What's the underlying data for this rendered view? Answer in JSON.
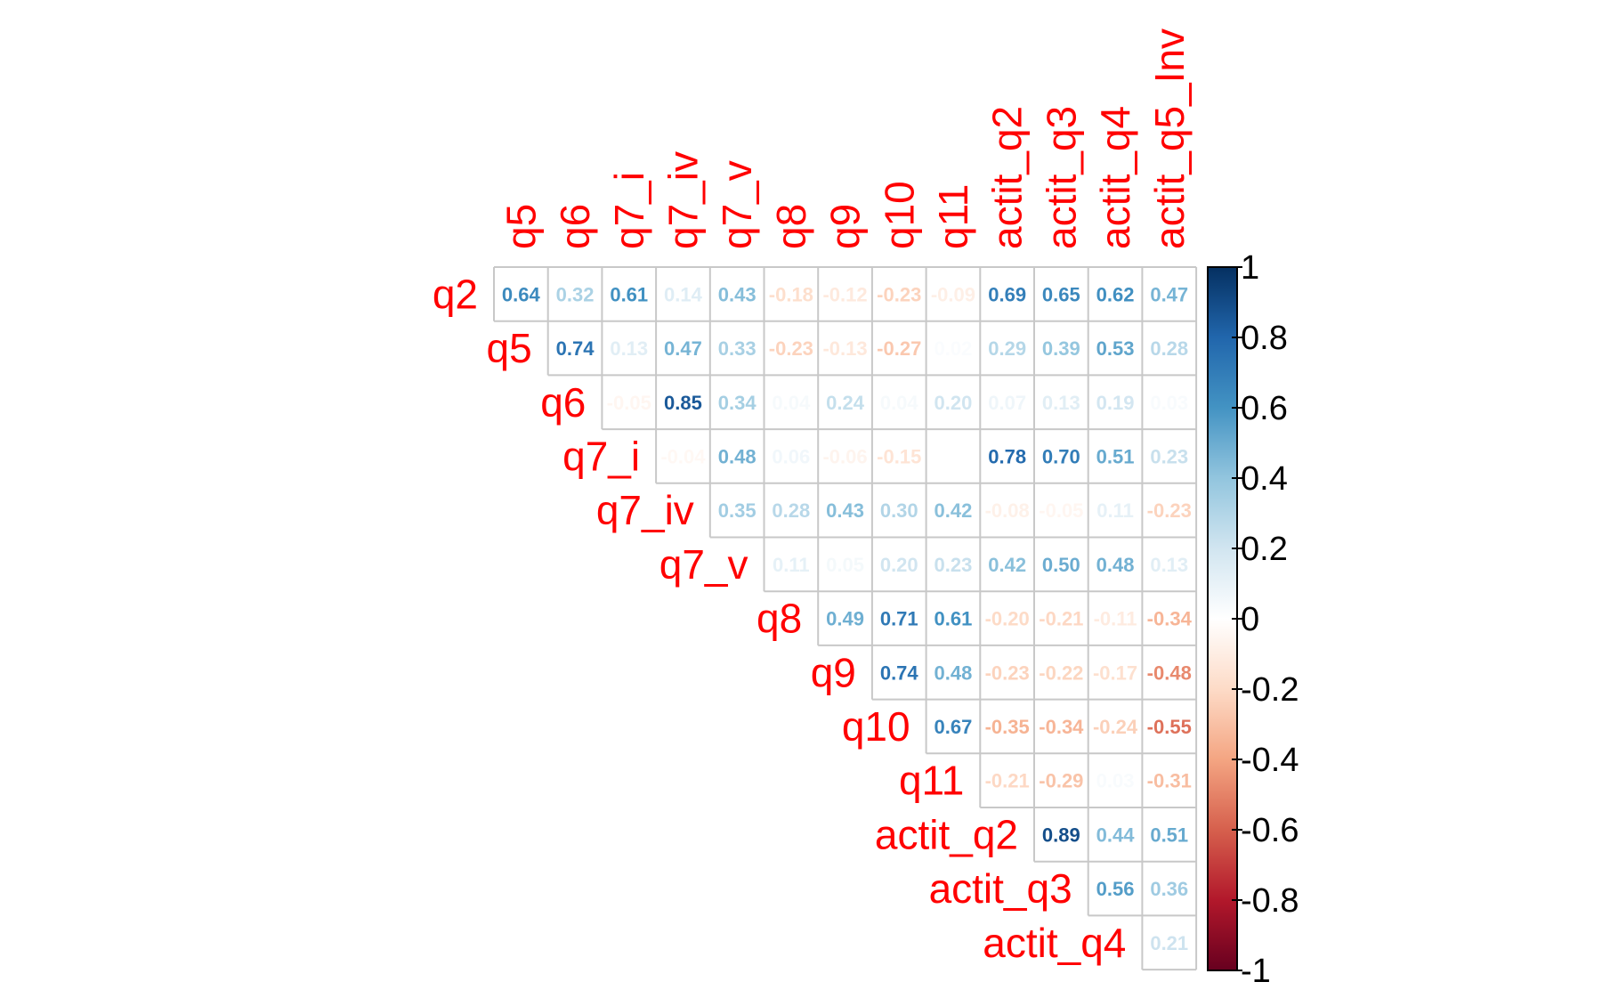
{
  "chart_data": {
    "type": "heatmap",
    "variables": [
      "q2",
      "q5",
      "q6",
      "q7_i",
      "q7_iv",
      "q7_v",
      "q8",
      "q9",
      "q10",
      "q11",
      "actit_q2",
      "actit_q3",
      "actit_q4",
      "actit_q5_Inv"
    ],
    "row_labels": [
      "q2",
      "q5",
      "q6",
      "q7_i",
      "q7_iv",
      "q7_v",
      "q8",
      "q9",
      "q10",
      "q11",
      "actit_q2",
      "actit_q3",
      "actit_q4"
    ],
    "col_labels": [
      "q5",
      "q6",
      "q7_i",
      "q7_iv",
      "q7_v",
      "q8",
      "q9",
      "q10",
      "q11",
      "actit_q2",
      "actit_q3",
      "actit_q4",
      "actit_q5_Inv"
    ],
    "matrix_layout": "upper-triangle",
    "values": [
      [
        0.64,
        0.32,
        0.61,
        0.14,
        0.43,
        -0.18,
        -0.12,
        -0.23,
        -0.09,
        0.69,
        0.65,
        0.62,
        0.47
      ],
      [
        0.74,
        0.13,
        0.47,
        0.33,
        -0.23,
        -0.13,
        -0.27,
        0.02,
        0.29,
        0.39,
        0.53,
        0.28
      ],
      [
        -0.05,
        0.85,
        0.34,
        0.04,
        0.24,
        0.04,
        0.2,
        0.07,
        0.13,
        0.19,
        0.03
      ],
      [
        -0.04,
        0.48,
        0.06,
        -0.06,
        -0.15,
        0.0,
        0.78,
        0.7,
        0.51,
        0.23
      ],
      [
        0.35,
        0.28,
        0.43,
        0.3,
        0.42,
        -0.08,
        -0.05,
        0.11,
        -0.23
      ],
      [
        0.11,
        0.05,
        0.2,
        0.23,
        0.42,
        0.5,
        0.48,
        0.13
      ],
      [
        0.49,
        0.71,
        0.61,
        -0.2,
        -0.21,
        -0.11,
        -0.34
      ],
      [
        0.74,
        0.48,
        -0.23,
        -0.22,
        -0.17,
        -0.48
      ],
      [
        0.67,
        -0.35,
        -0.34,
        -0.24,
        -0.55
      ],
      [
        -0.21,
        -0.29,
        0.03,
        -0.31
      ],
      [
        0.89,
        0.44,
        0.51
      ],
      [
        0.56,
        0.36
      ],
      [
        0.21
      ]
    ],
    "colorbar": {
      "range": [
        -1,
        1
      ],
      "ticks": [
        "1",
        "0.8",
        "0.6",
        "0.4",
        "0.2",
        "0",
        "-0.2",
        "-0.4",
        "-0.6",
        "-0.8",
        "-1"
      ],
      "low_color": "#67001f",
      "mid_color": "#ffffff",
      "high_color": "#053061"
    },
    "label_color": "#ff0000",
    "grid_color": "#c8c8c8"
  }
}
